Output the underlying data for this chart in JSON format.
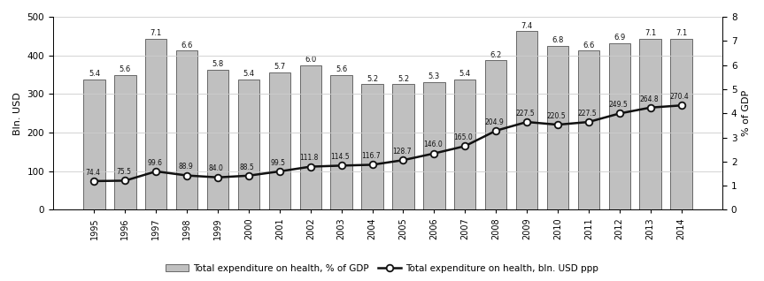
{
  "years": [
    1995,
    1996,
    1997,
    1998,
    1999,
    2000,
    2001,
    2002,
    2003,
    2004,
    2005,
    2006,
    2007,
    2008,
    2009,
    2010,
    2011,
    2012,
    2013,
    2014
  ],
  "gdp_pct": [
    5.4,
    5.6,
    7.1,
    6.6,
    5.8,
    5.4,
    5.7,
    6.0,
    5.6,
    5.2,
    5.2,
    5.3,
    5.4,
    6.2,
    7.4,
    6.8,
    6.6,
    6.9,
    7.1,
    7.1
  ],
  "bln_usd": [
    74.4,
    75.5,
    99.6,
    88.9,
    84.0,
    88.5,
    99.5,
    111.8,
    114.5,
    116.7,
    128.7,
    146.0,
    165.0,
    204.9,
    227.5,
    220.5,
    227.5,
    249.5,
    264.8,
    270.4
  ],
  "bar_color": "#c0c0c0",
  "bar_edgecolor": "#555555",
  "line_color": "#111111",
  "marker_facecolor": "#ffffff",
  "marker_edgecolor": "#111111",
  "ylabel_left": "Bln. USD",
  "ylabel_right": "% of GDP",
  "ylim_left": [
    0,
    500
  ],
  "ylim_right": [
    0,
    8
  ],
  "yticks_left": [
    0,
    100,
    200,
    300,
    400,
    500
  ],
  "yticks_right": [
    0,
    1,
    2,
    3,
    4,
    5,
    6,
    7,
    8
  ],
  "legend_bar": "Total expenditure on health, % of GDP",
  "legend_line": "Total expenditure on health, bln. USD ppp",
  "grid_color": "#cccccc",
  "background_color": "#ffffff"
}
